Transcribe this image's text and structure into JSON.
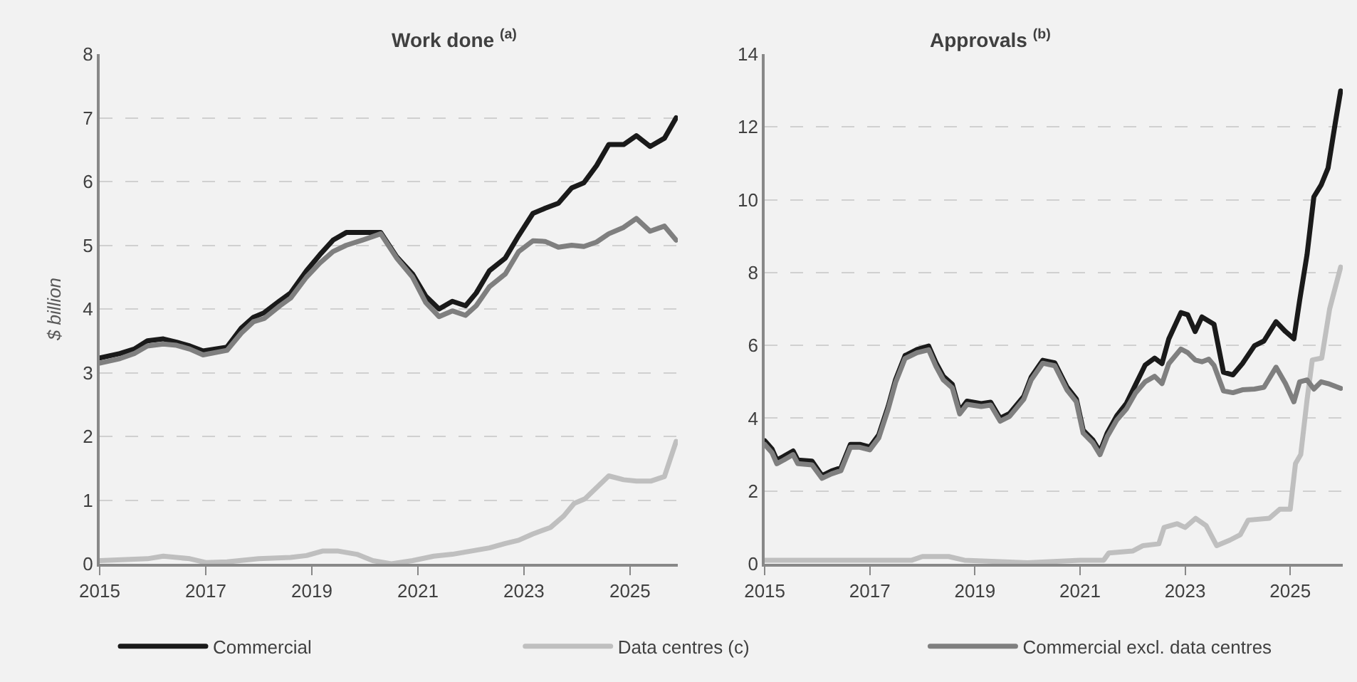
{
  "chart_data": [
    {
      "type": "line",
      "title": "Work done $^{(a)}$",
      "ylabel": "$ billion",
      "xlim": [
        2015,
        2025.9
      ],
      "xticks": [
        2015,
        2017,
        2019,
        2021,
        2023,
        2025
      ],
      "ylim": [
        0,
        8
      ],
      "yticks": [
        0,
        1,
        2,
        3,
        4,
        5,
        6,
        7,
        8
      ],
      "grid": "y",
      "legend": "bottom",
      "line_style": "solid",
      "series": [
        {
          "name": "Commercial",
          "color": "#1a1a1a",
          "x": [
            2015.0,
            2015.38,
            2015.65,
            2015.9,
            2016.2,
            2016.45,
            2016.7,
            2016.95,
            2017.4,
            2017.67,
            2017.9,
            2018.1,
            2018.4,
            2018.6,
            2018.9,
            2019.15,
            2019.4,
            2019.65,
            2019.95,
            2020.3,
            2020.6,
            2020.9,
            2021.15,
            2021.4,
            2021.65,
            2021.9,
            2022.1,
            2022.35,
            2022.65,
            2022.9,
            2023.17,
            2023.4,
            2023.65,
            2023.9,
            2024.13,
            2024.37,
            2024.6,
            2024.88,
            2025.12,
            2025.38,
            2025.65,
            2025.87
          ],
          "values": [
            3.23,
            3.3,
            3.37,
            3.5,
            3.53,
            3.48,
            3.42,
            3.34,
            3.4,
            3.7,
            3.87,
            3.94,
            4.13,
            4.25,
            4.6,
            4.85,
            5.08,
            5.2,
            5.2,
            5.2,
            4.82,
            4.55,
            4.2,
            4.0,
            4.12,
            4.05,
            4.25,
            4.6,
            4.8,
            5.15,
            5.5,
            5.58,
            5.66,
            5.9,
            5.98,
            6.25,
            6.58,
            6.58,
            6.72,
            6.55,
            6.68,
            7.0
          ]
        },
        {
          "name": "Data centres (c)",
          "color": "#bfbfbf",
          "x": [
            2015.0,
            2015.9,
            2016.2,
            2016.7,
            2017.0,
            2017.4,
            2018.0,
            2018.6,
            2018.9,
            2019.2,
            2019.5,
            2019.85,
            2020.15,
            2020.5,
            2020.9,
            2021.3,
            2021.65,
            2022.0,
            2022.35,
            2022.65,
            2022.9,
            2023.17,
            2023.5,
            2023.75,
            2023.95,
            2024.15,
            2024.6,
            2024.88,
            2025.12,
            2025.4,
            2025.65,
            2025.87
          ],
          "values": [
            0.05,
            0.08,
            0.12,
            0.08,
            0.02,
            0.03,
            0.08,
            0.1,
            0.13,
            0.2,
            0.2,
            0.15,
            0.05,
            0.0,
            0.05,
            0.12,
            0.15,
            0.2,
            0.25,
            0.32,
            0.37,
            0.47,
            0.57,
            0.75,
            0.95,
            1.02,
            1.38,
            1.32,
            1.3,
            1.3,
            1.37,
            1.92
          ]
        },
        {
          "name": "Commercial excl. data centres",
          "color": "#7f7f7f",
          "x": [
            2015.0,
            2015.38,
            2015.65,
            2015.9,
            2016.2,
            2016.45,
            2016.7,
            2016.95,
            2017.4,
            2017.67,
            2017.9,
            2018.1,
            2018.4,
            2018.6,
            2018.9,
            2019.15,
            2019.4,
            2019.65,
            2019.95,
            2020.3,
            2020.6,
            2020.9,
            2021.15,
            2021.4,
            2021.65,
            2021.9,
            2022.1,
            2022.35,
            2022.65,
            2022.9,
            2023.17,
            2023.4,
            2023.65,
            2023.9,
            2024.13,
            2024.37,
            2024.6,
            2024.88,
            2025.12,
            2025.38,
            2025.65,
            2025.87
          ],
          "values": [
            3.15,
            3.22,
            3.3,
            3.42,
            3.45,
            3.43,
            3.37,
            3.28,
            3.35,
            3.62,
            3.8,
            3.85,
            4.05,
            4.17,
            4.5,
            4.72,
            4.9,
            5.0,
            5.08,
            5.18,
            4.8,
            4.5,
            4.1,
            3.88,
            3.97,
            3.9,
            4.05,
            4.35,
            4.55,
            4.9,
            5.07,
            5.06,
            4.97,
            5.0,
            4.98,
            5.05,
            5.18,
            5.28,
            5.42,
            5.22,
            5.3,
            5.08
          ]
        }
      ]
    },
    {
      "type": "line",
      "title": "Approvals $^{(b)}$",
      "xlim": [
        2015,
        2026
      ],
      "xticks": [
        2015,
        2017,
        2019,
        2021,
        2023,
        2025
      ],
      "ylim": [
        0,
        14
      ],
      "yticks": [
        0,
        2,
        4,
        6,
        8,
        10,
        12,
        14
      ],
      "grid": "y",
      "legend": "bottom",
      "line_style": "solid",
      "series": [
        {
          "name": "Commercial",
          "color": "#1a1a1a",
          "x": [
            2015.0,
            2015.14,
            2015.23,
            2015.36,
            2015.54,
            2015.63,
            2015.9,
            2016.09,
            2016.27,
            2016.45,
            2016.63,
            2016.81,
            2017.0,
            2017.17,
            2017.35,
            2017.49,
            2017.67,
            2017.9,
            2018.12,
            2018.26,
            2018.4,
            2018.57,
            2018.71,
            2018.85,
            2019.12,
            2019.3,
            2019.48,
            2019.66,
            2019.93,
            2020.07,
            2020.29,
            2020.52,
            2020.75,
            2020.93,
            2021.06,
            2021.24,
            2021.38,
            2021.52,
            2021.7,
            2021.88,
            2022.06,
            2022.24,
            2022.42,
            2022.56,
            2022.69,
            2022.92,
            2023.05,
            2023.19,
            2023.32,
            2023.55,
            2023.73,
            2023.91,
            2024.09,
            2024.32,
            2024.5,
            2024.73,
            2024.91,
            2025.07,
            2025.18,
            2025.32,
            2025.45,
            2025.59,
            2025.72,
            2025.86,
            2025.96
          ],
          "values": [
            3.38,
            3.15,
            2.85,
            2.95,
            3.1,
            2.85,
            2.82,
            2.42,
            2.55,
            2.64,
            3.28,
            3.28,
            3.21,
            3.54,
            4.33,
            5.06,
            5.72,
            5.89,
            5.98,
            5.52,
            5.15,
            4.93,
            4.2,
            4.47,
            4.4,
            4.44,
            4.0,
            4.13,
            4.6,
            5.13,
            5.59,
            5.52,
            4.86,
            4.53,
            3.67,
            3.41,
            3.08,
            3.6,
            4.07,
            4.4,
            4.93,
            5.46,
            5.65,
            5.5,
            6.18,
            6.9,
            6.84,
            6.38,
            6.78,
            6.58,
            5.26,
            5.19,
            5.5,
            5.99,
            6.12,
            6.65,
            6.38,
            6.18,
            7.24,
            8.49,
            10.08,
            10.41,
            10.87,
            12.13,
            12.99
          ]
        },
        {
          "name": "Data centres (c)",
          "color": "#bfbfbf",
          "x": [
            2015.0,
            2017.8,
            2018.0,
            2018.5,
            2018.8,
            2020.0,
            2021.0,
            2021.45,
            2021.55,
            2022.0,
            2022.2,
            2022.5,
            2022.6,
            2022.85,
            2023.0,
            2023.2,
            2023.4,
            2023.6,
            2023.85,
            2024.05,
            2024.2,
            2024.6,
            2024.8,
            2025.0,
            2025.1,
            2025.2,
            2025.32,
            2025.42,
            2025.6,
            2025.75,
            2025.96
          ],
          "values": [
            0.1,
            0.1,
            0.2,
            0.2,
            0.1,
            0.03,
            0.1,
            0.1,
            0.3,
            0.35,
            0.5,
            0.55,
            1.0,
            1.1,
            1.0,
            1.25,
            1.05,
            0.5,
            0.65,
            0.8,
            1.2,
            1.25,
            1.5,
            1.5,
            2.75,
            3.0,
            4.5,
            5.6,
            5.65,
            7.0,
            8.15
          ]
        },
        {
          "name": "Commercial excl. data centres",
          "color": "#7f7f7f",
          "x": [
            2015.0,
            2015.14,
            2015.23,
            2015.36,
            2015.54,
            2015.63,
            2015.9,
            2016.09,
            2016.27,
            2016.45,
            2016.63,
            2016.81,
            2017.0,
            2017.17,
            2017.35,
            2017.49,
            2017.67,
            2017.9,
            2018.12,
            2018.26,
            2018.4,
            2018.57,
            2018.71,
            2018.85,
            2019.12,
            2019.3,
            2019.48,
            2019.66,
            2019.93,
            2020.07,
            2020.29,
            2020.52,
            2020.75,
            2020.93,
            2021.06,
            2021.24,
            2021.38,
            2021.52,
            2021.7,
            2021.88,
            2022.06,
            2022.24,
            2022.42,
            2022.56,
            2022.69,
            2022.92,
            2023.05,
            2023.19,
            2023.32,
            2023.45,
            2023.55,
            2023.73,
            2023.91,
            2024.09,
            2024.32,
            2024.5,
            2024.73,
            2024.91,
            2025.07,
            2025.18,
            2025.32,
            2025.45,
            2025.59,
            2025.72,
            2025.96
          ],
          "values": [
            3.28,
            3.05,
            2.75,
            2.85,
            3.0,
            2.75,
            2.72,
            2.35,
            2.47,
            2.56,
            3.2,
            3.2,
            3.13,
            3.46,
            4.25,
            4.98,
            5.64,
            5.8,
            5.88,
            5.42,
            5.05,
            4.83,
            4.12,
            4.38,
            4.32,
            4.36,
            3.92,
            4.05,
            4.52,
            5.05,
            5.51,
            5.44,
            4.78,
            4.45,
            3.59,
            3.33,
            3.0,
            3.5,
            3.95,
            4.25,
            4.7,
            5.0,
            5.15,
            4.95,
            5.5,
            5.9,
            5.8,
            5.6,
            5.55,
            5.62,
            5.45,
            4.75,
            4.7,
            4.78,
            4.8,
            4.85,
            5.4,
            4.95,
            4.45,
            5.0,
            5.05,
            4.8,
            5.0,
            4.95,
            4.82
          ]
        }
      ]
    }
  ]
}
